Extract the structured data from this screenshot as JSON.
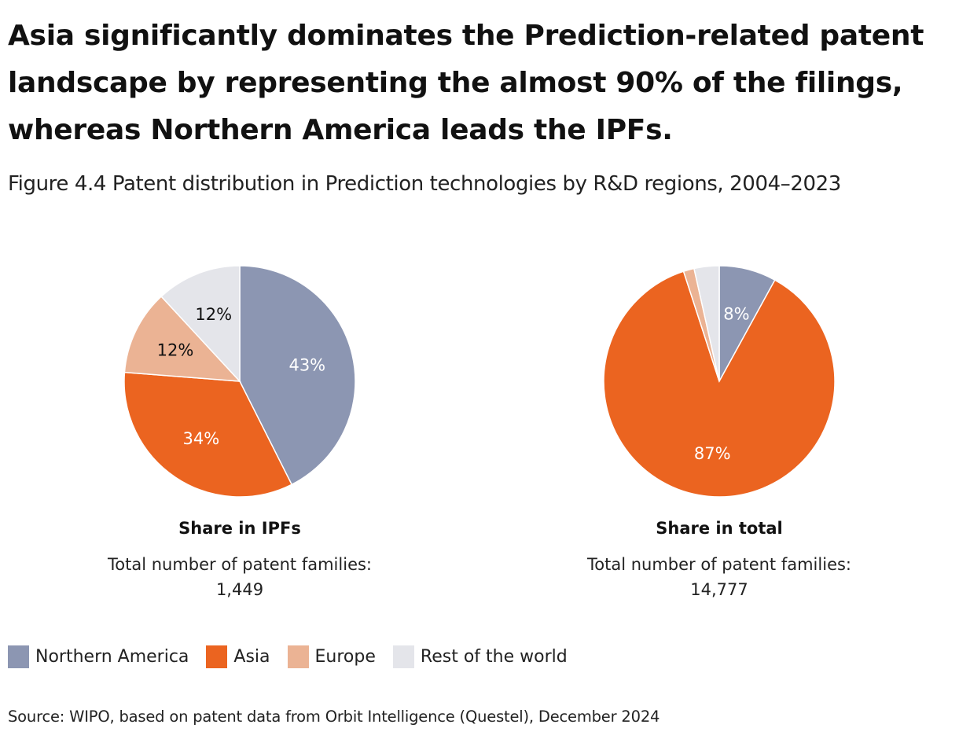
{
  "headline": "Asia significantly dominates the Prediction-related patent landscape by representing the almost 90% of the filings, whereas Northern America leads the IPFs.",
  "subtitle": "Figure 4.4 Patent distribution in Prediction technologies by R&D regions, 2004–2023",
  "colors": {
    "northern_america": "#8c96b2",
    "asia": "#eb6420",
    "europe": "#ebb394",
    "rest_of_world": "#e4e5ea"
  },
  "legend": [
    {
      "label": "Northern America",
      "color": "#8c96b2"
    },
    {
      "label": "Asia",
      "color": "#eb6420"
    },
    {
      "label": "Europe",
      "color": "#ebb394"
    },
    {
      "label": "Rest of the world",
      "color": "#e4e5ea"
    }
  ],
  "chart_data": [
    {
      "type": "pie",
      "title": "Share in IPFs",
      "total_label": "Total number of patent families:",
      "total_value": "1,449",
      "categories": [
        "Northern America",
        "Asia",
        "Europe",
        "Rest of the world"
      ],
      "values": [
        43,
        34,
        12,
        12
      ],
      "labels": [
        "43%",
        "34%",
        "12%",
        "12%"
      ]
    },
    {
      "type": "pie",
      "title": "Share in total",
      "total_label": "Total number of patent families:",
      "total_value": "14,777",
      "categories": [
        "Northern America",
        "Asia",
        "Europe",
        "Rest of the world"
      ],
      "values": [
        8,
        87,
        1.5,
        3.5
      ],
      "labels": [
        "8%",
        "87%",
        "",
        ""
      ]
    }
  ],
  "source": "Source: WIPO, based on patent data from Orbit Intelligence (Questel), December 2024"
}
